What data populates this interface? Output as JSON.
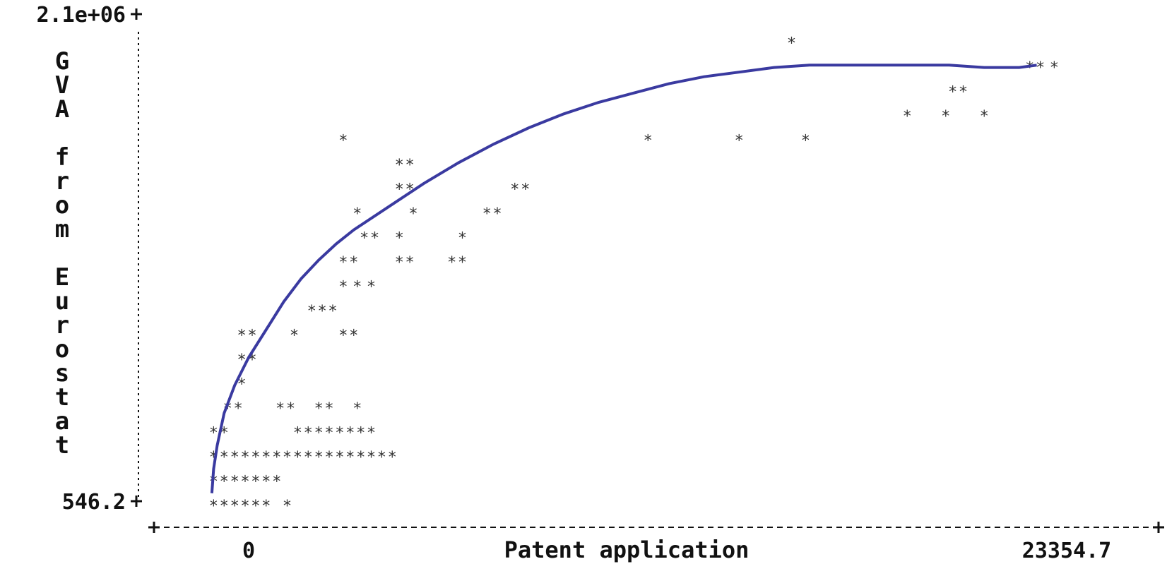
{
  "chart_data": {
    "type": "scatter",
    "title": "",
    "xlabel": "Patent application",
    "ylabel": "GVA from Eurostat",
    "ylabel_chars": [
      "G",
      "V",
      "A",
      "",
      "f",
      "r",
      "o",
      "m",
      "",
      "E",
      "u",
      "r",
      "o",
      "s",
      "t",
      "a",
      "t"
    ],
    "y_ticks": [
      "546.2",
      "2.1e+06"
    ],
    "x_ticks": [
      "0",
      "23354.7"
    ],
    "ylim": [
      546.2,
      2100000
    ],
    "xlim": [
      -2400,
      23354.7
    ],
    "marker": "*",
    "grid": false,
    "legend": "none",
    "colors": {
      "fit_line": "#3a3aa0",
      "markers": "#333333",
      "axes": "#111111"
    },
    "points": [
      {
        "x": -1000,
        "y": 546
      },
      {
        "x": -700,
        "y": 546
      },
      {
        "x": -400,
        "y": 546
      },
      {
        "x": -100,
        "y": 546
      },
      {
        "x": 200,
        "y": 546
      },
      {
        "x": 500,
        "y": 546
      },
      {
        "x": 1100,
        "y": 546
      },
      {
        "x": -1000,
        "y": 105000
      },
      {
        "x": -700,
        "y": 105000
      },
      {
        "x": -400,
        "y": 105000
      },
      {
        "x": -100,
        "y": 105000
      },
      {
        "x": 200,
        "y": 105000
      },
      {
        "x": 500,
        "y": 105000
      },
      {
        "x": 800,
        "y": 105000
      },
      {
        "x": -1000,
        "y": 210000
      },
      {
        "x": -700,
        "y": 210000
      },
      {
        "x": -400,
        "y": 210000
      },
      {
        "x": -100,
        "y": 210000
      },
      {
        "x": 200,
        "y": 210000
      },
      {
        "x": 500,
        "y": 210000
      },
      {
        "x": 800,
        "y": 210000
      },
      {
        "x": 1100,
        "y": 210000
      },
      {
        "x": 1400,
        "y": 210000
      },
      {
        "x": 1700,
        "y": 210000
      },
      {
        "x": 2000,
        "y": 210000
      },
      {
        "x": 2300,
        "y": 210000
      },
      {
        "x": 2600,
        "y": 210000
      },
      {
        "x": 2900,
        "y": 210000
      },
      {
        "x": 3200,
        "y": 210000
      },
      {
        "x": 3500,
        "y": 210000
      },
      {
        "x": 3800,
        "y": 210000
      },
      {
        "x": 4100,
        "y": 210000
      },
      {
        "x": -1000,
        "y": 315000
      },
      {
        "x": -700,
        "y": 315000
      },
      {
        "x": 1400,
        "y": 315000
      },
      {
        "x": 1700,
        "y": 315000
      },
      {
        "x": 2000,
        "y": 315000
      },
      {
        "x": 2300,
        "y": 315000
      },
      {
        "x": 2600,
        "y": 315000
      },
      {
        "x": 2900,
        "y": 315000
      },
      {
        "x": 3200,
        "y": 315000
      },
      {
        "x": 3500,
        "y": 315000
      },
      {
        "x": -600,
        "y": 420000
      },
      {
        "x": -300,
        "y": 420000
      },
      {
        "x": 900,
        "y": 420000
      },
      {
        "x": 1200,
        "y": 420000
      },
      {
        "x": 2000,
        "y": 420000
      },
      {
        "x": 2300,
        "y": 420000
      },
      {
        "x": 3100,
        "y": 420000
      },
      {
        "x": -200,
        "y": 525000
      },
      {
        "x": -200,
        "y": 630000
      },
      {
        "x": 100,
        "y": 630000
      },
      {
        "x": -200,
        "y": 735000
      },
      {
        "x": 100,
        "y": 735000
      },
      {
        "x": 1300,
        "y": 735000
      },
      {
        "x": 2700,
        "y": 735000
      },
      {
        "x": 3000,
        "y": 735000
      },
      {
        "x": 1800,
        "y": 840000
      },
      {
        "x": 2100,
        "y": 840000
      },
      {
        "x": 2400,
        "y": 840000
      },
      {
        "x": 2700,
        "y": 945000
      },
      {
        "x": 3100,
        "y": 945000
      },
      {
        "x": 3500,
        "y": 945000
      },
      {
        "x": 2700,
        "y": 1050000
      },
      {
        "x": 3000,
        "y": 1050000
      },
      {
        "x": 4300,
        "y": 1050000
      },
      {
        "x": 4600,
        "y": 1050000
      },
      {
        "x": 5800,
        "y": 1050000
      },
      {
        "x": 6100,
        "y": 1050000
      },
      {
        "x": 3300,
        "y": 1155000
      },
      {
        "x": 3600,
        "y": 1155000
      },
      {
        "x": 4300,
        "y": 1155000
      },
      {
        "x": 6100,
        "y": 1155000
      },
      {
        "x": 3100,
        "y": 1260000
      },
      {
        "x": 4700,
        "y": 1260000
      },
      {
        "x": 6800,
        "y": 1260000
      },
      {
        "x": 7100,
        "y": 1260000
      },
      {
        "x": 4300,
        "y": 1365000
      },
      {
        "x": 4600,
        "y": 1365000
      },
      {
        "x": 7600,
        "y": 1365000
      },
      {
        "x": 7900,
        "y": 1365000
      },
      {
        "x": 4300,
        "y": 1470000
      },
      {
        "x": 4600,
        "y": 1470000
      },
      {
        "x": 2700,
        "y": 1575000
      },
      {
        "x": 11400,
        "y": 1575000
      },
      {
        "x": 14000,
        "y": 1575000
      },
      {
        "x": 15900,
        "y": 1575000
      },
      {
        "x": 18800,
        "y": 1680000
      },
      {
        "x": 19900,
        "y": 1680000
      },
      {
        "x": 21000,
        "y": 1680000
      },
      {
        "x": 20100,
        "y": 1785000
      },
      {
        "x": 20400,
        "y": 1785000
      },
      {
        "x": 22300,
        "y": 1890000
      },
      {
        "x": 22600,
        "y": 1890000
      },
      {
        "x": 23000,
        "y": 1890000
      },
      {
        "x": 15500,
        "y": 1995000
      }
    ],
    "fit_line": {
      "x": [
        -1050,
        -1000,
        -900,
        -700,
        -400,
        0,
        500,
        1000,
        1500,
        2000,
        2500,
        3000,
        4000,
        5000,
        6000,
        7000,
        8000,
        9000,
        10000,
        11000,
        12000,
        13000,
        14000,
        15000,
        16000,
        17000,
        18000,
        19000,
        20000,
        21000,
        22000,
        22500
      ],
      "y": [
        35000,
        140000,
        240000,
        380000,
        500000,
        620000,
        740000,
        860000,
        960000,
        1040000,
        1110000,
        1170000,
        1270000,
        1370000,
        1460000,
        1540000,
        1610000,
        1670000,
        1720000,
        1760000,
        1800000,
        1830000,
        1850000,
        1870000,
        1880000,
        1880000,
        1880000,
        1880000,
        1880000,
        1870000,
        1870000,
        1880000
      ]
    }
  }
}
